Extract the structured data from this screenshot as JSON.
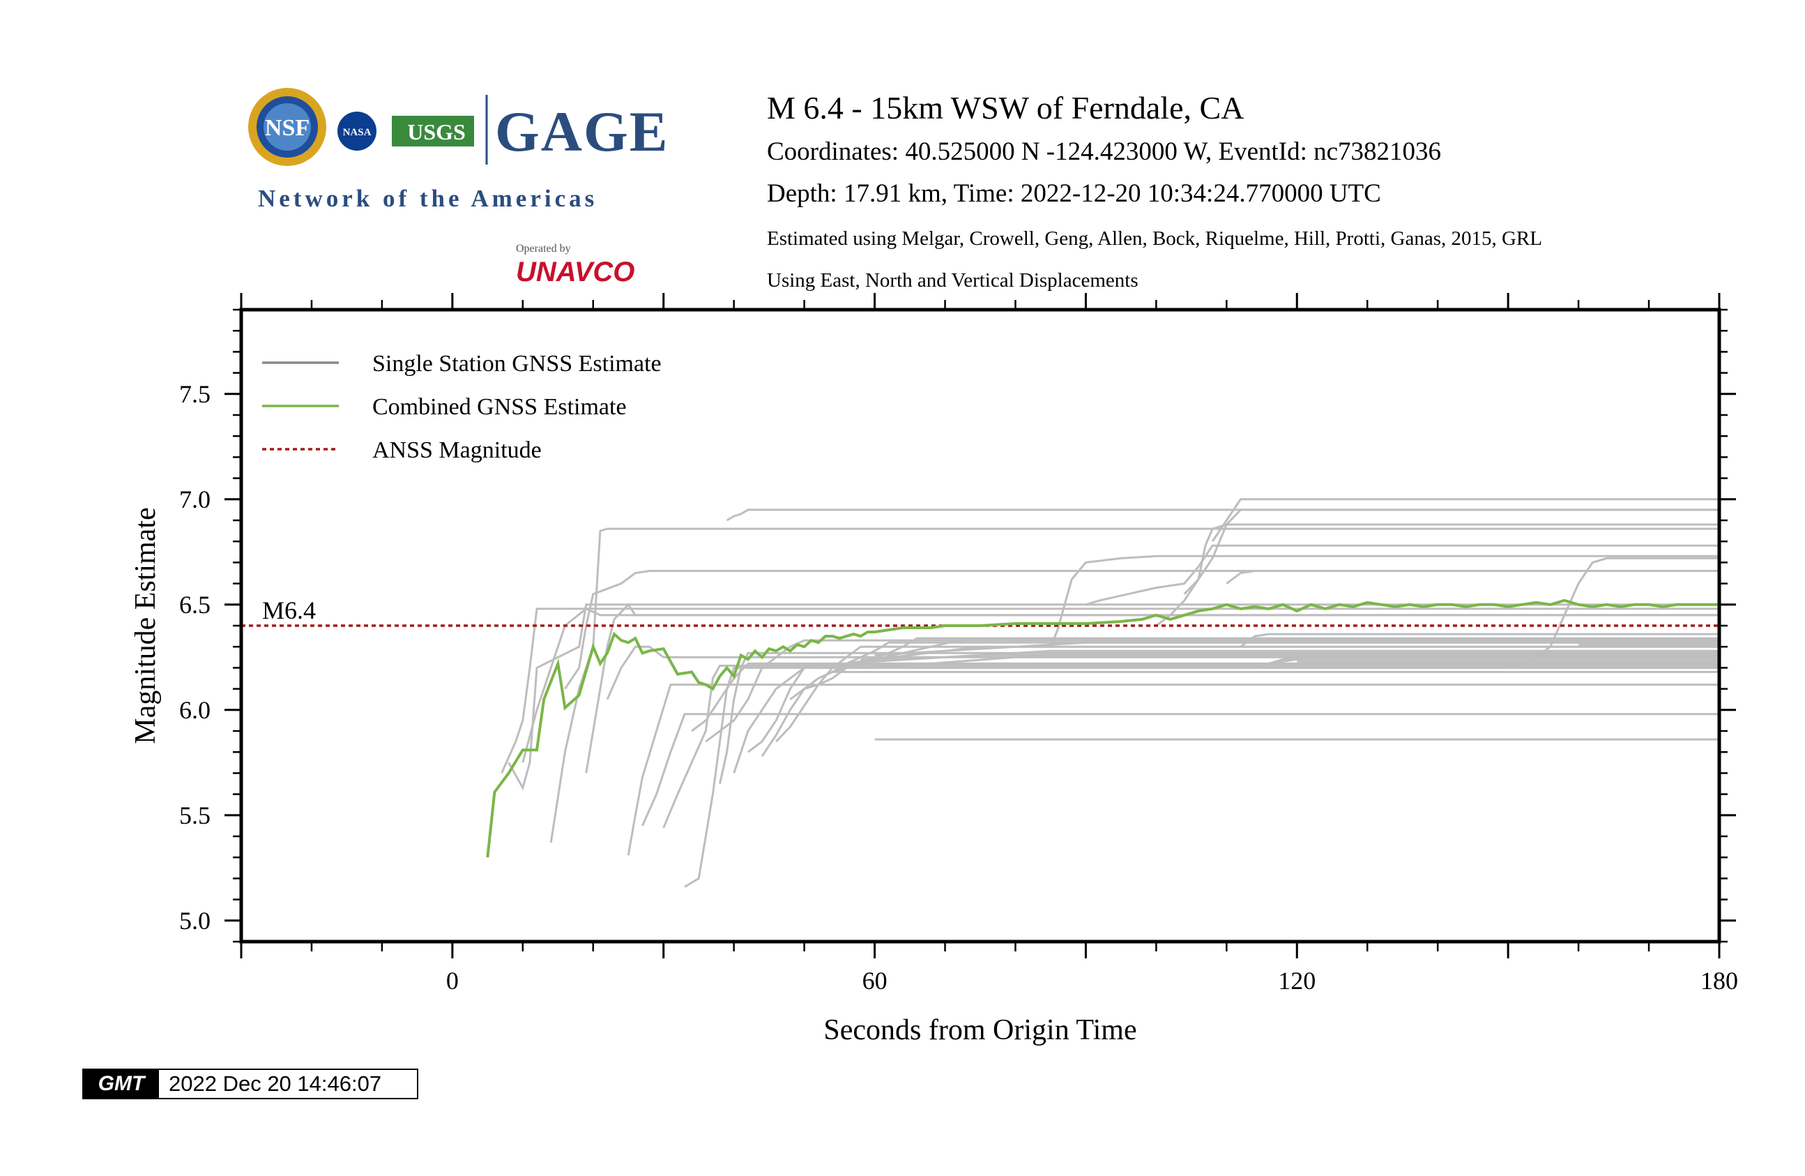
{
  "header": {
    "title": "M 6.4 - 15km WSW of Ferndale, CA",
    "coordinates": "Coordinates: 40.525000 N -124.423000 W, EventId: nc73821036",
    "depth_time": "Depth: 17.91 km, Time: 2022-12-20 10:34:24.770000 UTC",
    "method": "Estimated using Melgar, Crowell, Geng, Allen, Bock, Riquelme, Hill, Protti, Ganas, 2015, GRL",
    "displacements": "Using East, North and Vertical Displacements"
  },
  "logos": {
    "nsf": "NSF",
    "nasa": "NASA",
    "usgs": "USGS",
    "gage": "GAGE",
    "network": "Network of the Americas",
    "operated_by": "Operated by",
    "unavco": "UNAVCO"
  },
  "gmt_stamp": {
    "logo": "GMT",
    "timestamp": "2022 Dec 20 14:46:07"
  },
  "colors": {
    "single_station": "#bdbdbd",
    "single_station_legend": "#8a8a8a",
    "combined": "#7ab648",
    "anss": "#a31b1b"
  },
  "chart_data": {
    "type": "line",
    "title": "",
    "xlabel": "Seconds from Origin Time",
    "ylabel": "Magnitude Estimate",
    "xlim": [
      -30,
      180
    ],
    "ylim": [
      4.9,
      7.9
    ],
    "xticks": [
      0,
      60,
      120,
      180
    ],
    "xtick_labels": [
      "0",
      "60",
      "120",
      "180"
    ],
    "yticks": [
      5.0,
      5.5,
      6.0,
      6.5,
      7.0,
      7.5
    ],
    "ytick_labels": [
      "5.0",
      "5.5",
      "6.0",
      "6.5",
      "7.0",
      "7.5"
    ],
    "legend": {
      "position": "top-left",
      "entries": [
        "Single Station GNSS Estimate",
        "Combined GNSS Estimate",
        "ANSS Magnitude"
      ]
    },
    "anss_magnitude": 6.4,
    "anss_label": "M6.4",
    "combined": {
      "name": "Combined GNSS Estimate",
      "x": [
        5,
        6,
        8,
        10,
        12,
        13,
        15,
        16,
        18,
        20,
        21,
        22,
        23,
        24,
        25,
        26,
        27,
        28,
        30,
        32,
        34,
        35,
        36,
        37,
        38,
        39,
        40,
        41,
        42,
        43,
        44,
        45,
        46,
        47,
        48,
        49,
        50,
        51,
        52,
        53,
        54,
        55,
        56,
        57,
        58,
        59,
        60,
        62,
        64,
        66,
        68,
        70,
        75,
        80,
        85,
        90,
        95,
        98,
        100,
        102,
        104,
        106,
        108,
        110,
        112,
        114,
        116,
        118,
        120,
        122,
        124,
        126,
        128,
        130,
        132,
        134,
        136,
        138,
        140,
        142,
        144,
        146,
        148,
        150,
        152,
        154,
        156,
        158,
        160,
        162,
        164,
        166,
        168,
        170,
        172,
        174,
        176,
        178,
        180
      ],
      "y": [
        5.3,
        5.61,
        5.7,
        5.81,
        5.81,
        6.05,
        6.22,
        6.01,
        6.07,
        6.3,
        6.22,
        6.27,
        6.36,
        6.33,
        6.32,
        6.34,
        6.27,
        6.28,
        6.29,
        6.17,
        6.18,
        6.13,
        6.12,
        6.1,
        6.16,
        6.2,
        6.16,
        6.26,
        6.24,
        6.28,
        6.25,
        6.29,
        6.28,
        6.3,
        6.28,
        6.31,
        6.3,
        6.33,
        6.32,
        6.35,
        6.35,
        6.34,
        6.35,
        6.36,
        6.35,
        6.37,
        6.37,
        6.38,
        6.39,
        6.39,
        6.39,
        6.4,
        6.4,
        6.41,
        6.41,
        6.41,
        6.42,
        6.43,
        6.45,
        6.43,
        6.45,
        6.47,
        6.48,
        6.5,
        6.48,
        6.49,
        6.48,
        6.5,
        6.47,
        6.5,
        6.48,
        6.5,
        6.49,
        6.51,
        6.5,
        6.49,
        6.5,
        6.49,
        6.5,
        6.5,
        6.49,
        6.5,
        6.5,
        6.49,
        6.5,
        6.51,
        6.5,
        6.52,
        6.5,
        6.49,
        6.5,
        6.49,
        6.5,
        6.5,
        6.49,
        6.5,
        6.5,
        6.5,
        6.5
      ]
    },
    "single_station": [
      {
        "x": [
          7,
          9,
          10,
          11,
          12,
          180
        ],
        "y": [
          5.7,
          5.85,
          5.95,
          6.2,
          6.48,
          6.48
        ]
      },
      {
        "x": [
          8,
          10,
          11,
          12,
          18,
          19,
          180
        ],
        "y": [
          5.75,
          5.63,
          5.75,
          6.2,
          6.3,
          6.5,
          6.5
        ]
      },
      {
        "x": [
          10,
          12,
          14,
          16,
          19,
          21,
          180
        ],
        "y": [
          5.75,
          6.0,
          6.2,
          6.4,
          6.48,
          6.45,
          6.45
        ]
      },
      {
        "x": [
          14,
          16,
          18,
          20,
          21,
          22,
          24,
          180
        ],
        "y": [
          5.37,
          5.8,
          6.1,
          6.3,
          6.85,
          6.86,
          6.86,
          6.86
        ]
      },
      {
        "x": [
          16,
          18,
          19,
          20,
          24,
          26,
          28,
          30,
          180
        ],
        "y": [
          6.1,
          6.2,
          6.4,
          6.55,
          6.6,
          6.65,
          6.66,
          6.66,
          6.66
        ]
      },
      {
        "x": [
          19,
          21,
          22,
          23,
          25,
          26,
          180
        ],
        "y": [
          5.7,
          6.1,
          6.3,
          6.43,
          6.5,
          6.45,
          6.45
        ]
      },
      {
        "x": [
          22,
          24,
          26,
          28,
          30,
          180
        ],
        "y": [
          6.05,
          6.2,
          6.3,
          6.3,
          6.25,
          6.25
        ]
      },
      {
        "x": [
          25,
          26,
          27,
          29,
          31,
          180
        ],
        "y": [
          5.31,
          5.5,
          5.68,
          5.9,
          6.12,
          6.12
        ]
      },
      {
        "x": [
          27,
          29,
          31,
          33,
          180
        ],
        "y": [
          5.45,
          5.6,
          5.8,
          5.98,
          5.98
        ]
      },
      {
        "x": [
          30,
          32,
          34,
          36,
          37,
          38,
          180
        ],
        "y": [
          5.44,
          5.6,
          5.75,
          5.9,
          6.15,
          6.21,
          6.21
        ]
      },
      {
        "x": [
          33,
          35,
          36,
          37,
          38,
          39,
          40,
          180
        ],
        "y": [
          5.16,
          5.2,
          5.4,
          5.6,
          5.85,
          6.1,
          6.2,
          6.2
        ]
      },
      {
        "x": [
          34,
          36,
          38,
          40,
          42,
          180
        ],
        "y": [
          5.9,
          5.95,
          6.05,
          6.15,
          6.22,
          6.22
        ]
      },
      {
        "x": [
          36,
          38,
          40,
          42,
          44,
          46,
          48,
          50,
          180
        ],
        "y": [
          5.85,
          5.9,
          5.95,
          6.05,
          6.2,
          6.25,
          6.3,
          6.33,
          6.33
        ]
      },
      {
        "x": [
          38,
          39,
          40,
          41,
          42,
          180
        ],
        "y": [
          5.65,
          5.8,
          6.05,
          6.2,
          6.27,
          6.27
        ]
      },
      {
        "x": [
          39,
          40,
          41,
          42,
          44,
          180
        ],
        "y": [
          6.9,
          6.92,
          6.93,
          6.95,
          6.95,
          6.95
        ]
      },
      {
        "x": [
          40,
          42,
          44,
          46,
          48,
          50,
          180
        ],
        "y": [
          5.7,
          5.9,
          6.0,
          6.1,
          6.15,
          6.2,
          6.2
        ]
      },
      {
        "x": [
          42,
          44,
          46,
          48,
          50,
          52,
          180
        ],
        "y": [
          5.8,
          5.85,
          5.95,
          6.1,
          6.2,
          6.22,
          6.22
        ]
      },
      {
        "x": [
          44,
          46,
          48,
          50,
          52,
          54,
          180
        ],
        "y": [
          5.78,
          5.88,
          6.0,
          6.1,
          6.15,
          6.18,
          6.18
        ]
      },
      {
        "x": [
          46,
          48,
          50,
          52,
          54,
          56,
          58,
          180
        ],
        "y": [
          5.85,
          5.92,
          6.02,
          6.12,
          6.2,
          6.25,
          6.3,
          6.3
        ]
      },
      {
        "x": [
          48,
          50,
          52,
          54,
          56,
          58,
          60,
          62,
          180
        ],
        "y": [
          6.05,
          6.1,
          6.15,
          6.18,
          6.22,
          6.25,
          6.28,
          6.32,
          6.32
        ]
      },
      {
        "x": [
          50,
          52,
          54,
          56,
          58,
          60,
          62,
          64,
          66,
          180
        ],
        "y": [
          6.1,
          6.12,
          6.15,
          6.2,
          6.23,
          6.25,
          6.27,
          6.3,
          6.34,
          6.34
        ]
      },
      {
        "x": [
          52,
          54,
          56,
          58,
          60,
          64,
          68,
          72,
          180
        ],
        "y": [
          6.15,
          6.18,
          6.2,
          6.22,
          6.24,
          6.27,
          6.3,
          6.33,
          6.33
        ]
      },
      {
        "x": [
          54,
          56,
          58,
          60,
          65,
          70,
          75,
          180
        ],
        "y": [
          6.2,
          6.22,
          6.23,
          6.24,
          6.26,
          6.28,
          6.3,
          6.3
        ]
      },
      {
        "x": [
          56,
          58,
          60,
          65,
          70,
          75,
          80,
          85,
          180
        ],
        "y": [
          6.22,
          6.23,
          6.23,
          6.24,
          6.25,
          6.26,
          6.27,
          6.28,
          6.28
        ]
      },
      {
        "x": [
          58,
          60,
          65,
          70,
          75,
          80,
          180
        ],
        "y": [
          6.24,
          6.24,
          6.25,
          6.25,
          6.26,
          6.26,
          6.26
        ]
      },
      {
        "x": [
          60,
          65,
          70,
          75,
          80,
          85,
          90,
          180
        ],
        "y": [
          6.26,
          6.27,
          6.28,
          6.29,
          6.3,
          6.31,
          6.32,
          6.32
        ]
      },
      {
        "x": [
          60,
          64,
          68,
          72,
          76,
          80,
          84,
          180
        ],
        "y": [
          6.2,
          6.21,
          6.22,
          6.23,
          6.24,
          6.25,
          6.26,
          6.26
        ]
      },
      {
        "x": [
          85,
          86,
          87,
          88,
          90,
          95,
          100,
          105,
          180
        ],
        "y": [
          6.3,
          6.38,
          6.5,
          6.62,
          6.7,
          6.72,
          6.73,
          6.73,
          6.73
        ]
      },
      {
        "x": [
          90,
          92,
          96,
          100,
          104,
          106,
          108,
          180
        ],
        "y": [
          6.5,
          6.52,
          6.55,
          6.58,
          6.6,
          6.68,
          6.78,
          6.78
        ]
      },
      {
        "x": [
          100,
          102,
          104,
          106,
          107,
          108,
          110,
          180
        ],
        "y": [
          6.4,
          6.45,
          6.52,
          6.62,
          6.78,
          6.86,
          6.88,
          6.88
        ]
      },
      {
        "x": [
          104,
          106,
          108,
          110,
          112,
          180
        ],
        "y": [
          6.55,
          6.62,
          6.72,
          6.88,
          6.95,
          6.95
        ]
      },
      {
        "x": [
          108,
          110,
          112,
          180
        ],
        "y": [
          6.8,
          6.9,
          7.0,
          7.0
        ]
      },
      {
        "x": [
          110,
          112,
          114,
          180
        ],
        "y": [
          6.6,
          6.65,
          6.66,
          6.66
        ]
      },
      {
        "x": [
          112,
          114,
          116,
          180
        ],
        "y": [
          6.3,
          6.35,
          6.36,
          6.36
        ]
      },
      {
        "x": [
          114,
          116,
          118,
          120,
          180
        ],
        "y": [
          6.2,
          6.22,
          6.24,
          6.25,
          6.25
        ]
      },
      {
        "x": [
          116,
          118,
          120,
          180
        ],
        "y": [
          6.22,
          6.23,
          6.24,
          6.24
        ]
      },
      {
        "x": [
          150,
          152,
          154,
          156,
          158,
          160,
          162,
          164,
          180
        ],
        "y": [
          6.2,
          6.22,
          6.25,
          6.3,
          6.45,
          6.6,
          6.7,
          6.72,
          6.72
        ]
      },
      {
        "x": [
          60,
          80,
          100,
          120,
          140,
          160,
          180
        ],
        "y": [
          5.86,
          5.86,
          5.86,
          5.86,
          5.86,
          5.86,
          5.86
        ]
      },
      {
        "x": [
          120,
          140,
          160,
          180
        ],
        "y": [
          6.23,
          6.23,
          6.23,
          6.23
        ]
      },
      {
        "x": [
          130,
          150,
          170,
          180
        ],
        "y": [
          6.2,
          6.2,
          6.2,
          6.2
        ]
      },
      {
        "x": [
          140,
          160,
          180
        ],
        "y": [
          6.27,
          6.27,
          6.27
        ]
      },
      {
        "x": [
          160,
          170,
          180
        ],
        "y": [
          6.31,
          6.31,
          6.31
        ]
      }
    ]
  }
}
